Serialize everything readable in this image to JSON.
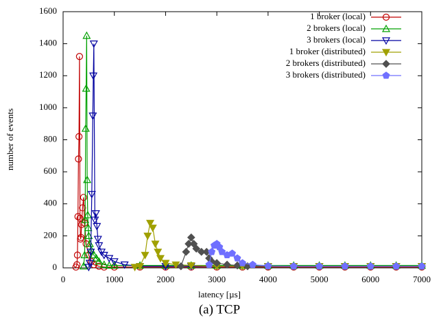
{
  "chart_data": {
    "type": "line",
    "x_label": "latency [µs]",
    "y_label": "number of events",
    "caption": "(a) TCP",
    "xlim": [
      0,
      7000
    ],
    "ylim": [
      0,
      1600
    ],
    "xticks": [
      0,
      1000,
      2000,
      3000,
      4000,
      5000,
      6000,
      7000
    ],
    "yticks": [
      0,
      200,
      400,
      600,
      800,
      1000,
      1200,
      1400,
      1600
    ],
    "legend": "top-right",
    "series": [
      {
        "name": "1 broker (local)",
        "color": "#c00000",
        "marker": "circle",
        "filled": false,
        "x": [
          250,
          270,
          280,
          290,
          300,
          310,
          320,
          330,
          340,
          350,
          360,
          380,
          400,
          420,
          450,
          500,
          550,
          600,
          700,
          800,
          1000,
          1500,
          2000,
          2500,
          3000,
          3500,
          4000,
          4500,
          5000,
          5500,
          6000,
          6500,
          7000
        ],
        "values": [
          5,
          20,
          80,
          320,
          680,
          820,
          1320,
          310,
          180,
          190,
          270,
          375,
          440,
          280,
          150,
          80,
          40,
          20,
          10,
          5,
          5,
          5,
          5,
          5,
          5,
          5,
          5,
          5,
          5,
          5,
          5,
          5,
          5
        ]
      },
      {
        "name": "2 brokers (local)",
        "color": "#00a000",
        "marker": "triangle-up",
        "filled": false,
        "x": [
          400,
          420,
          430,
          440,
          450,
          460,
          470,
          480,
          490,
          500,
          520,
          550,
          600,
          650,
          700,
          800,
          900,
          1000,
          1500,
          2000,
          2500,
          3000,
          3500,
          4000,
          4500,
          5000,
          5500,
          6000,
          6500,
          7000
        ],
        "values": [
          10,
          80,
          300,
          870,
          1120,
          1450,
          550,
          330,
          250,
          200,
          150,
          110,
          80,
          60,
          40,
          20,
          15,
          15,
          15,
          15,
          15,
          15,
          15,
          15,
          15,
          15,
          15,
          15,
          15,
          15
        ]
      },
      {
        "name": "3 brokers (local)",
        "color": "#0000a0",
        "marker": "triangle-down",
        "filled": false,
        "x": [
          500,
          520,
          540,
          560,
          580,
          590,
          600,
          620,
          640,
          660,
          680,
          700,
          750,
          800,
          900,
          1000,
          1200,
          1500,
          2000,
          2500,
          3000,
          3500,
          4000,
          4500,
          5000,
          5500,
          6000,
          6500,
          7000
        ],
        "values": [
          5,
          30,
          100,
          460,
          950,
          1200,
          1400,
          300,
          340,
          260,
          180,
          140,
          100,
          80,
          60,
          40,
          20,
          10,
          10,
          10,
          10,
          10,
          10,
          10,
          10,
          10,
          10,
          10,
          10
        ]
      },
      {
        "name": "1 broker (distributed)",
        "color": "#a0a000",
        "marker": "triangle-down",
        "filled": true,
        "x": [
          1400,
          1500,
          1600,
          1650,
          1700,
          1750,
          1800,
          1850,
          1900,
          2000,
          2200,
          2500,
          3000,
          3500,
          4000,
          4500,
          5000,
          5500,
          6000,
          6500,
          7000
        ],
        "values": [
          5,
          10,
          80,
          200,
          280,
          250,
          150,
          100,
          60,
          30,
          20,
          15,
          10,
          10,
          10,
          10,
          10,
          10,
          10,
          10,
          10
        ]
      },
      {
        "name": "2 brokers (distributed)",
        "color": "#505050",
        "marker": "diamond",
        "filled": true,
        "x": [
          2300,
          2400,
          2450,
          2500,
          2550,
          2600,
          2700,
          2800,
          2850,
          2900,
          3000,
          3200,
          3400,
          3600,
          4000,
          4500,
          5000,
          5500,
          6000,
          6500,
          7000
        ],
        "values": [
          10,
          100,
          150,
          190,
          150,
          120,
          100,
          100,
          60,
          40,
          30,
          20,
          15,
          10,
          10,
          10,
          10,
          10,
          10,
          10,
          10
        ]
      },
      {
        "name": "3 brokers (distributed)",
        "color": "#7070ff",
        "marker": "pentagon",
        "filled": true,
        "x": [
          2850,
          2900,
          2950,
          3000,
          3050,
          3100,
          3200,
          3300,
          3400,
          3500,
          3700,
          4000,
          4500,
          5000,
          5500,
          6000,
          6500,
          7000
        ],
        "values": [
          20,
          100,
          140,
          150,
          130,
          100,
          80,
          90,
          60,
          30,
          20,
          12,
          10,
          10,
          10,
          10,
          10,
          10
        ]
      }
    ]
  }
}
